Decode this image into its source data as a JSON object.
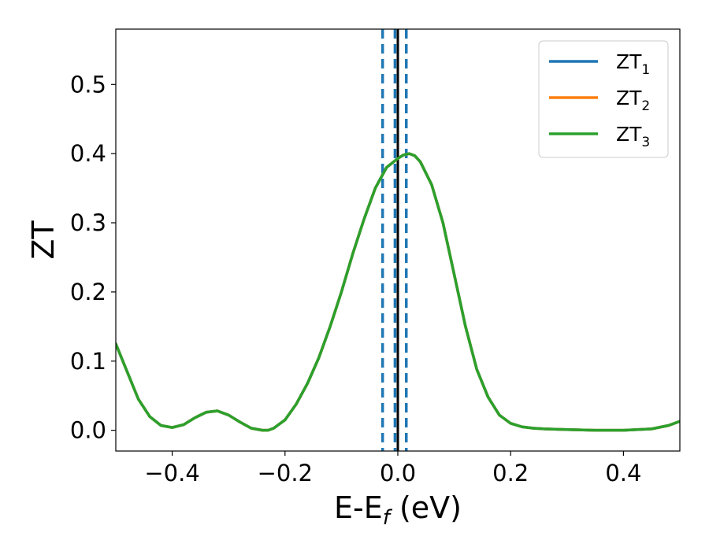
{
  "chart_data": {
    "type": "line",
    "title": "",
    "xlabel": {
      "main": "E-E",
      "sub": "f",
      "suffix": " (eV)"
    },
    "ylabel": "ZT",
    "xlim": [
      -0.5,
      0.5
    ],
    "ylim": [
      -0.03,
      0.58
    ],
    "grid": false,
    "legend_position": "top-right",
    "x_ticks": [
      -0.4,
      -0.2,
      0.0,
      0.2,
      0.4
    ],
    "x_tick_labels": [
      "−0.4",
      "−0.2",
      "0.0",
      "0.2",
      "0.4"
    ],
    "y_ticks": [
      0.0,
      0.1,
      0.2,
      0.3,
      0.4,
      0.5
    ],
    "y_tick_labels": [
      "0.0",
      "0.1",
      "0.2",
      "0.3",
      "0.4",
      "0.5"
    ],
    "series": [
      {
        "name": "ZT",
        "name_sub": "1",
        "color": "#1f77b4",
        "x": [
          -0.5,
          -0.46,
          -0.44,
          -0.42,
          -0.4,
          -0.38,
          -0.36,
          -0.34,
          -0.32,
          -0.3,
          -0.28,
          -0.26,
          -0.24,
          -0.23,
          -0.22,
          -0.2,
          -0.18,
          -0.16,
          -0.14,
          -0.12,
          -0.1,
          -0.08,
          -0.06,
          -0.04,
          -0.02,
          0.0,
          0.01,
          0.02,
          0.03,
          0.04,
          0.06,
          0.08,
          0.1,
          0.12,
          0.14,
          0.16,
          0.18,
          0.2,
          0.22,
          0.24,
          0.26,
          0.3,
          0.35,
          0.4,
          0.45,
          0.48,
          0.5
        ],
        "y": [
          0.125,
          0.045,
          0.02,
          0.007,
          0.004,
          0.008,
          0.018,
          0.026,
          0.028,
          0.022,
          0.012,
          0.003,
          0.0,
          0.0,
          0.003,
          0.015,
          0.038,
          0.068,
          0.105,
          0.15,
          0.2,
          0.255,
          0.305,
          0.35,
          0.38,
          0.393,
          0.398,
          0.4,
          0.397,
          0.388,
          0.355,
          0.3,
          0.225,
          0.15,
          0.088,
          0.048,
          0.022,
          0.01,
          0.005,
          0.003,
          0.002,
          0.001,
          0.0,
          0.0,
          0.002,
          0.007,
          0.013
        ]
      },
      {
        "name": "ZT",
        "name_sub": "2",
        "color": "#ff7f0e",
        "x": [
          -0.5,
          -0.46,
          -0.44,
          -0.42,
          -0.4,
          -0.38,
          -0.36,
          -0.34,
          -0.32,
          -0.3,
          -0.28,
          -0.26,
          -0.24,
          -0.23,
          -0.22,
          -0.2,
          -0.18,
          -0.16,
          -0.14,
          -0.12,
          -0.1,
          -0.08,
          -0.06,
          -0.04,
          -0.02,
          0.0,
          0.01,
          0.02,
          0.03,
          0.04,
          0.06,
          0.08,
          0.1,
          0.12,
          0.14,
          0.16,
          0.18,
          0.2,
          0.22,
          0.24,
          0.26,
          0.3,
          0.35,
          0.4,
          0.45,
          0.48,
          0.5
        ],
        "y": [
          0.125,
          0.045,
          0.02,
          0.007,
          0.004,
          0.008,
          0.018,
          0.026,
          0.028,
          0.022,
          0.012,
          0.003,
          0.0,
          0.0,
          0.003,
          0.015,
          0.038,
          0.068,
          0.105,
          0.15,
          0.2,
          0.255,
          0.305,
          0.35,
          0.38,
          0.393,
          0.398,
          0.4,
          0.397,
          0.388,
          0.355,
          0.3,
          0.225,
          0.15,
          0.088,
          0.048,
          0.022,
          0.01,
          0.005,
          0.003,
          0.002,
          0.001,
          0.0,
          0.0,
          0.002,
          0.007,
          0.013
        ]
      },
      {
        "name": "ZT",
        "name_sub": "3",
        "color": "#2ca02c",
        "x": [
          -0.5,
          -0.46,
          -0.44,
          -0.42,
          -0.4,
          -0.38,
          -0.36,
          -0.34,
          -0.32,
          -0.3,
          -0.28,
          -0.26,
          -0.24,
          -0.23,
          -0.22,
          -0.2,
          -0.18,
          -0.16,
          -0.14,
          -0.12,
          -0.1,
          -0.08,
          -0.06,
          -0.04,
          -0.02,
          0.0,
          0.01,
          0.02,
          0.03,
          0.04,
          0.06,
          0.08,
          0.1,
          0.12,
          0.14,
          0.16,
          0.18,
          0.2,
          0.22,
          0.24,
          0.26,
          0.3,
          0.35,
          0.4,
          0.45,
          0.48,
          0.5
        ],
        "y": [
          0.125,
          0.045,
          0.02,
          0.007,
          0.004,
          0.008,
          0.018,
          0.026,
          0.028,
          0.022,
          0.012,
          0.003,
          0.0,
          0.0,
          0.003,
          0.015,
          0.038,
          0.068,
          0.105,
          0.15,
          0.2,
          0.255,
          0.305,
          0.35,
          0.38,
          0.393,
          0.398,
          0.4,
          0.397,
          0.388,
          0.355,
          0.3,
          0.225,
          0.15,
          0.088,
          0.048,
          0.022,
          0.01,
          0.005,
          0.003,
          0.002,
          0.001,
          0.0,
          0.0,
          0.002,
          0.007,
          0.013
        ]
      }
    ],
    "vertical_lines": [
      {
        "x": -0.027,
        "style": "dashed",
        "color": "#1f77b4"
      },
      {
        "x": -0.005,
        "style": "dashed",
        "color": "#1f77b4"
      },
      {
        "x": 0.015,
        "style": "dashed",
        "color": "#1f77b4"
      },
      {
        "x": 0.0,
        "style": "solid",
        "color": "#000000"
      }
    ]
  }
}
